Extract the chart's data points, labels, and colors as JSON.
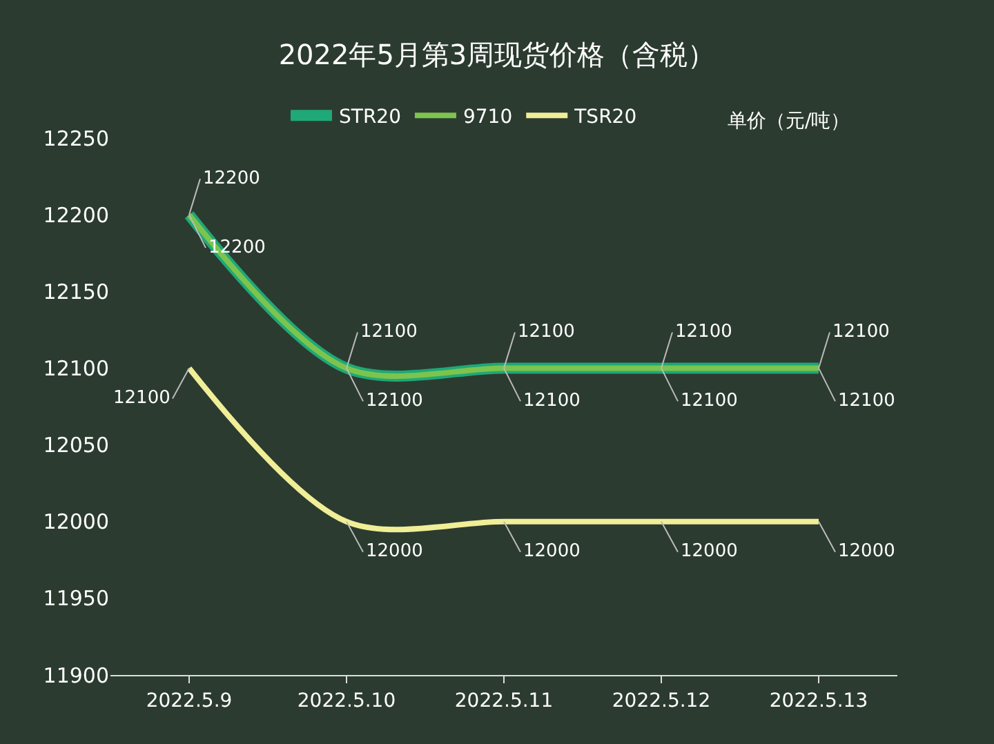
{
  "chart_data": {
    "type": "line",
    "title": "2022年5月第3周现货价格（含税）",
    "ylabel": "单价（元/吨）",
    "categories": [
      "2022.5.9",
      "2022.5.10",
      "2022.5.11",
      "2022.5.12",
      "2022.5.13"
    ],
    "series": [
      {
        "name": "STR20",
        "color": "#1fa878",
        "values": [
          12200,
          12100,
          12100,
          12100,
          12100
        ]
      },
      {
        "name": "9710",
        "color": "#7cc44e",
        "values": [
          12200,
          12100,
          12100,
          12100,
          12100
        ]
      },
      {
        "name": "TSR20",
        "color": "#f0ee96",
        "values": [
          12100,
          12000,
          12000,
          12000,
          12000
        ]
      }
    ],
    "ylim": [
      11900,
      12250
    ],
    "yticks": [
      11900,
      11950,
      12000,
      12050,
      12100,
      12150,
      12200,
      12250
    ],
    "data_labels": true,
    "grid": false,
    "legend": "top",
    "marker": "none",
    "line_style": "solid"
  }
}
